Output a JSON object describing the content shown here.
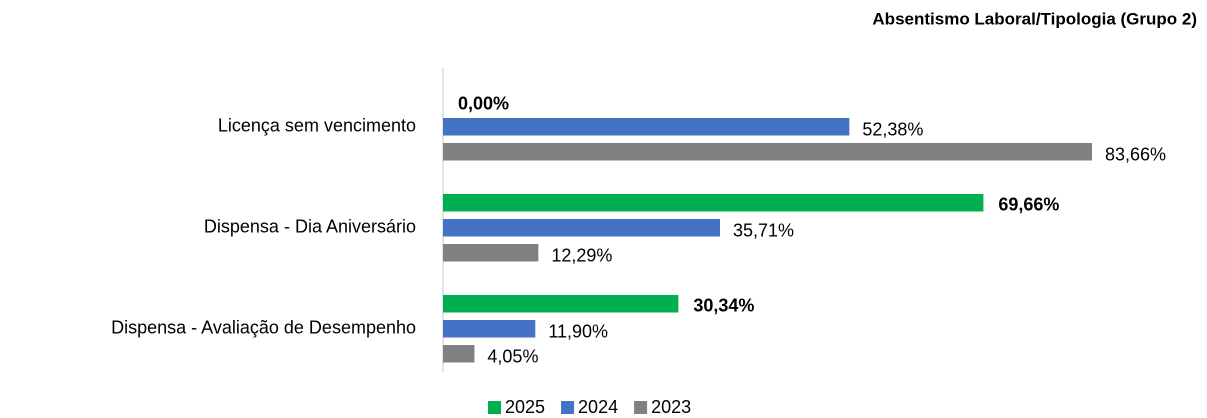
{
  "chart_data": {
    "type": "hbar",
    "title": "Absentismo Laboral/Tipologia (Grupo 2)",
    "categories": [
      "Licença sem vencimento",
      "Dispensa - Dia Aniversário",
      "Dispensa - Avaliação de Desempenho"
    ],
    "series": [
      {
        "name": "2025",
        "color": "#00b050",
        "values": [
          0.0,
          69.66,
          30.34
        ],
        "value_labels": [
          "0,00%",
          "69,66%",
          "30,34%"
        ]
      },
      {
        "name": "2024",
        "color": "#4472c4",
        "values": [
          52.38,
          35.71,
          11.9
        ],
        "value_labels": [
          "52,38%",
          "35,71%",
          "11,90%"
        ]
      },
      {
        "name": "2023",
        "color": "#808080",
        "values": [
          83.66,
          12.29,
          4.05
        ],
        "value_labels": [
          "83,66%",
          "12,29%",
          "4,05%"
        ]
      }
    ],
    "legend": "bottom"
  }
}
